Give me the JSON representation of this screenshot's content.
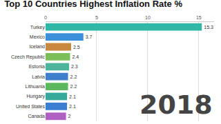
{
  "chart_data": {
    "type": "bar",
    "title": "Top 10 Countries Highest Inflation Rate %",
    "orientation": "horizontal",
    "categories": [
      "Turkey",
      "Mexico",
      "Iceland",
      "Czech Republic",
      "Estonia",
      "Latvia",
      "Lithuania",
      "Hungary",
      "United States",
      "Canada"
    ],
    "values": [
      15.3,
      3.7,
      2.5,
      2.4,
      2.3,
      2.2,
      2.2,
      2.1,
      2.1,
      2
    ],
    "colors": [
      "#2fb8a6",
      "#3a8fd9",
      "#c8893e",
      "#7cbf58",
      "#4db59c",
      "#3f7fcc",
      "#5cb85c",
      "#37a99b",
      "#3b7fd2",
      "#b05fc2"
    ],
    "xlim": [
      0,
      16.5
    ],
    "xticks": [
      0,
      5,
      10,
      15
    ],
    "grid": true,
    "data_labels": true,
    "annotations": [
      "2018"
    ]
  }
}
